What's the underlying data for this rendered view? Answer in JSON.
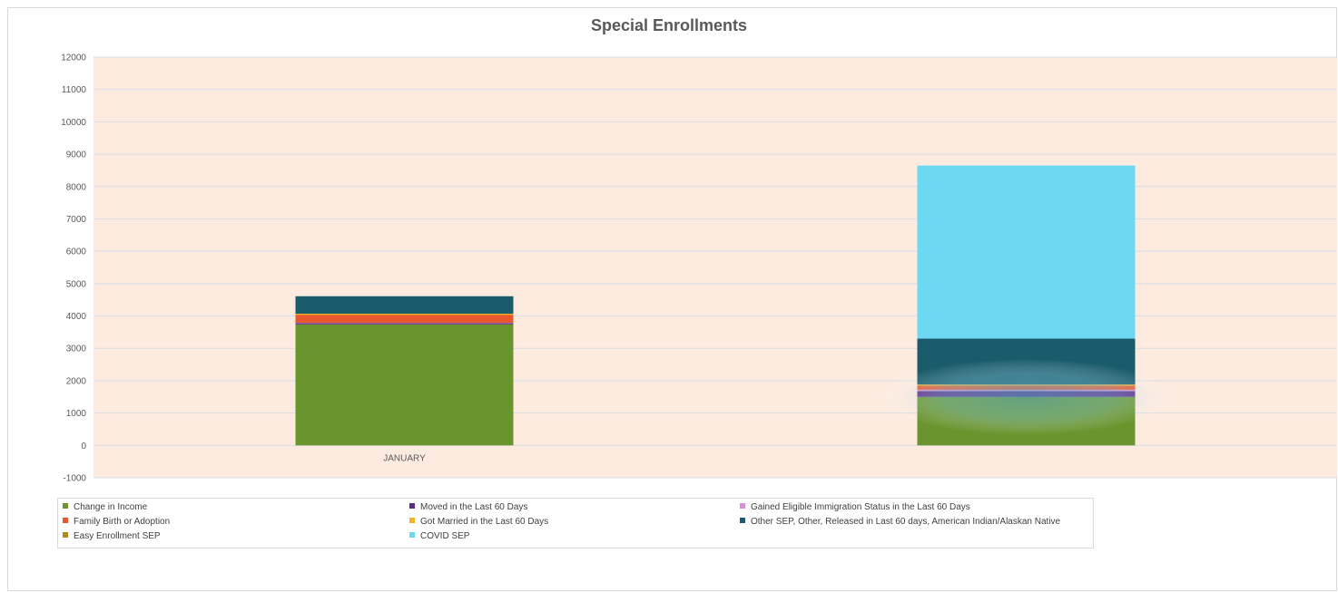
{
  "chart_data": {
    "type": "bar",
    "stacked": true,
    "title": "Special Enrollments",
    "xlabel": "",
    "ylabel": "",
    "ylim": [
      -1000,
      12000
    ],
    "yticks": [
      -1000,
      0,
      1000,
      2000,
      3000,
      4000,
      5000,
      6000,
      7000,
      8000,
      9000,
      10000,
      11000,
      12000
    ],
    "categories": [
      "JANUARY",
      ""
    ],
    "grid": true,
    "legend_position": "bottom",
    "series": [
      {
        "name": "Change in Income",
        "color": "#6a942e",
        "values": [
          3740,
          1500
        ]
      },
      {
        "name": "Moved in the Last 60 Days",
        "color": "#5b2c86",
        "values": [
          40,
          180
        ]
      },
      {
        "name": "Gained Eligible Immigration Status in the Last 60 Days",
        "color": "#d98fd8",
        "values": [
          10,
          40
        ]
      },
      {
        "name": "Family Birth or Adoption",
        "color": "#e8582e",
        "values": [
          250,
          130
        ]
      },
      {
        "name": "Got Married in the Last 60 Days",
        "color": "#f2b51d",
        "values": [
          30,
          30
        ]
      },
      {
        "name": "Other SEP, Other, Released in Last 60 days, American Indian/Alaskan Native",
        "color": "#1a5c6b",
        "values": [
          540,
          1420
        ]
      },
      {
        "name": "Easy Enrollment SEP",
        "color": "#b5881d",
        "values": [
          0,
          0
        ]
      },
      {
        "name": "COVID SEP",
        "color": "#6dd8f2",
        "values": [
          0,
          5350
        ]
      }
    ]
  }
}
